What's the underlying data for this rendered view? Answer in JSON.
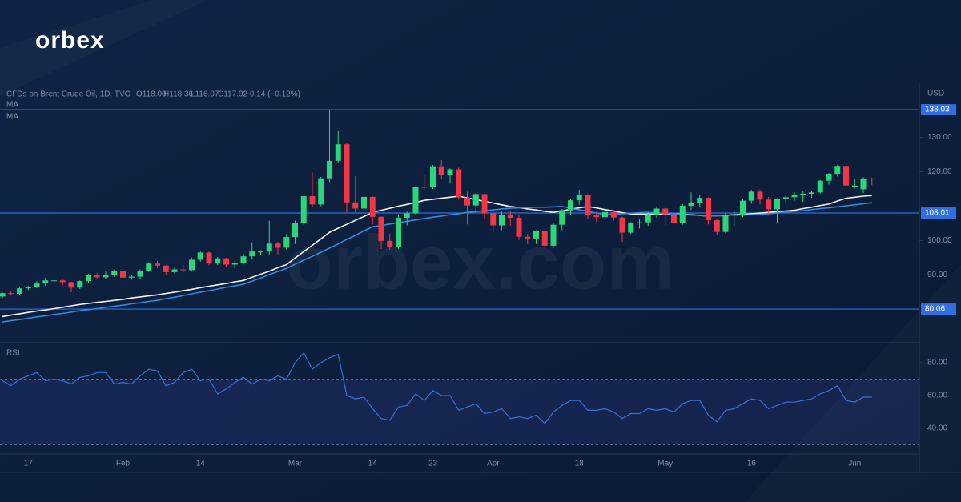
{
  "brand": {
    "logo": "orbex",
    "watermark": "orbex.com"
  },
  "chart_data": [
    {
      "type": "candlestick",
      "title": "CFDs on Brent Crude Oil, 1D, TVC",
      "ohlc_legend": [
        "O118.00",
        "H118.36",
        "L116.07",
        "C117.92",
        "−0.14 (−0.12%)"
      ],
      "y_axis_label": "USD",
      "categories": [
        null,
        null,
        null,
        "17",
        null,
        null,
        null,
        null,
        null,
        null,
        null,
        null,
        null,
        null,
        "Feb",
        null,
        null,
        null,
        null,
        null,
        null,
        null,
        null,
        "14",
        null,
        null,
        null,
        null,
        null,
        null,
        null,
        null,
        null,
        null,
        "Mar",
        null,
        null,
        null,
        null,
        null,
        null,
        null,
        null,
        "14",
        null,
        null,
        null,
        null,
        null,
        null,
        "23",
        null,
        null,
        null,
        null,
        null,
        null,
        "Apr",
        null,
        null,
        null,
        null,
        null,
        null,
        null,
        null,
        null,
        "18",
        null,
        null,
        null,
        null,
        null,
        null,
        null,
        null,
        null,
        "May",
        null,
        null,
        null,
        null,
        null,
        null,
        null,
        null,
        null,
        "16",
        null,
        null,
        null,
        null,
        null,
        null,
        null,
        null,
        null,
        null,
        null,
        "Jun",
        null,
        null
      ],
      "open": [
        83.7,
        84.7,
        84.5,
        86.1,
        86.5,
        87.5,
        88.4,
        88.4,
        87.9,
        86.3,
        88.2,
        90.0,
        89.3,
        90.0,
        91.2,
        89.2,
        89.5,
        91.1,
        93.3,
        92.7,
        90.8,
        91.6,
        91.4,
        94.4,
        96.5,
        93.3,
        94.8,
        93.0,
        93.5,
        95.4,
        96.8,
        96.8,
        99.1,
        97.9,
        101.0,
        105.0,
        112.9,
        110.5,
        118.1,
        123.2,
        128.0,
        111.1,
        109.3,
        112.7,
        106.9,
        99.9,
        98.0,
        106.6,
        107.9,
        115.6,
        115.5,
        121.6,
        119.0,
        120.7,
        112.5,
        110.2,
        113.5,
        107.9,
        104.4,
        107.5,
        106.6,
        101.1,
        100.6,
        102.8,
        98.5,
        104.6,
        108.8,
        111.7,
        113.2,
        107.3,
        106.8,
        108.3,
        106.7,
        102.3,
        105.0,
        105.3,
        107.6,
        109.3,
        107.6,
        105.0,
        110.1,
        111.0,
        112.4,
        105.9,
        102.5,
        107.5,
        107.5,
        111.6,
        114.2,
        111.9,
        109.1,
        112.0,
        112.6,
        113.4,
        113.6,
        114.0,
        117.4,
        119.4,
        121.7,
        115.7,
        114.9,
        118.0
      ],
      "high": [
        84.9,
        85.4,
        86.3,
        86.8,
        88.1,
        89.2,
        89.0,
        88.6,
        88.0,
        88.4,
        90.3,
        90.6,
        91.0,
        91.5,
        91.6,
        90.1,
        91.6,
        93.7,
        94.0,
        92.9,
        92.1,
        92.9,
        95.0,
        96.8,
        96.8,
        95.2,
        95.0,
        94.0,
        96.0,
        99.5,
        97.2,
        105.8,
        99.6,
        101.9,
        105.8,
        113.0,
        119.8,
        118.5,
        138.0,
        132.0,
        128.4,
        118.7,
        113.5,
        112.9,
        107.0,
        102.0,
        107.6,
        108.4,
        115.8,
        119.0,
        122.0,
        123.4,
        121.0,
        121.2,
        114.2,
        114.0,
        113.6,
        108.4,
        108.4,
        108.5,
        107.6,
        102.0,
        103.0,
        103.0,
        105.0,
        109.2,
        112.0,
        114.8,
        113.5,
        108.4,
        109.0,
        108.7,
        106.9,
        105.4,
        106.3,
        108.3,
        110.0,
        109.6,
        107.9,
        110.6,
        114.0,
        113.2,
        112.6,
        106.3,
        108.0,
        108.5,
        112.0,
        114.8,
        114.8,
        112.7,
        112.3,
        113.0,
        114.0,
        114.4,
        114.4,
        117.6,
        119.6,
        122.0,
        124.0,
        117.9,
        118.4,
        118.36
      ],
      "low": [
        83.4,
        84.0,
        84.2,
        85.6,
        86.2,
        86.8,
        87.5,
        87.0,
        85.0,
        85.9,
        87.8,
        88.7,
        88.9,
        89.5,
        88.7,
        88.6,
        88.8,
        90.9,
        92.0,
        90.0,
        90.5,
        90.8,
        91.0,
        93.9,
        92.8,
        92.9,
        92.2,
        91.9,
        93.2,
        94.5,
        95.8,
        95.9,
        96.0,
        97.4,
        99.0,
        104.5,
        109.8,
        110.0,
        117.0,
        122.8,
        108.2,
        108.2,
        108.0,
        104.7,
        97.5,
        97.3,
        97.6,
        104.4,
        107.5,
        114.8,
        115.0,
        118.0,
        116.5,
        111.9,
        104.7,
        108.7,
        106.2,
        102.3,
        103.0,
        104.3,
        100.2,
        98.9,
        99.0,
        97.6,
        97.9,
        103.0,
        107.5,
        110.4,
        106.4,
        105.4,
        106.1,
        105.8,
        99.6,
        101.9,
        103.5,
        104.3,
        106.6,
        104.5,
        104.2,
        104.6,
        108.9,
        109.6,
        104.7,
        101.7,
        102.1,
        104.2,
        106.8,
        110.7,
        110.5,
        107.2,
        105.2,
        110.7,
        111.6,
        111.3,
        112.4,
        113.7,
        116.3,
        118.6,
        115.5,
        115.2,
        113.8,
        116.07
      ],
      "close": [
        84.7,
        84.5,
        86.1,
        86.5,
        87.5,
        88.4,
        88.4,
        87.9,
        86.3,
        88.2,
        90.0,
        89.3,
        90.0,
        91.2,
        89.2,
        89.5,
        91.1,
        93.3,
        92.7,
        90.8,
        91.6,
        91.4,
        94.4,
        96.5,
        93.3,
        94.8,
        93.0,
        93.5,
        95.4,
        96.8,
        96.8,
        99.1,
        97.9,
        101.0,
        105.0,
        112.9,
        110.5,
        118.1,
        123.2,
        128.0,
        111.1,
        109.3,
        112.7,
        106.9,
        99.9,
        98.0,
        106.6,
        107.9,
        115.6,
        115.5,
        121.6,
        119.0,
        120.7,
        112.5,
        110.2,
        113.5,
        107.9,
        104.4,
        107.5,
        106.6,
        101.1,
        100.6,
        102.8,
        98.5,
        104.6,
        108.8,
        111.7,
        113.2,
        107.3,
        106.8,
        108.3,
        106.7,
        102.3,
        105.0,
        105.3,
        107.6,
        109.3,
        107.6,
        105.0,
        110.1,
        111.0,
        112.4,
        105.9,
        102.5,
        107.5,
        107.5,
        111.6,
        114.2,
        111.9,
        109.1,
        112.0,
        112.6,
        113.4,
        113.6,
        114.0,
        117.4,
        119.4,
        121.7,
        116.0,
        116.0,
        118.06,
        117.92
      ],
      "up_color": "#2bd67b",
      "down_color": "#f23645",
      "series": [
        {
          "name": "MA",
          "color": "#f2f2f2",
          "values": [
            77.9,
            78.3,
            78.7,
            79.1,
            79.5,
            79.8,
            80.2,
            80.6,
            81.0,
            81.4,
            81.7,
            82.0,
            82.3,
            82.6,
            82.9,
            83.3,
            83.6,
            83.9,
            84.2,
            84.6,
            85.0,
            85.4,
            85.8,
            86.3,
            86.7,
            87.1,
            87.5,
            88.0,
            88.4,
            89.3,
            90.2,
            91.1,
            92.1,
            93.0,
            94.9,
            96.8,
            98.6,
            100.5,
            102.4,
            103.6,
            104.7,
            105.9,
            107.0,
            108.2,
            108.8,
            109.4,
            110.0,
            110.5,
            111.1,
            111.7,
            112.0,
            112.3,
            112.6,
            112.9,
            112.4,
            111.9,
            111.4,
            110.9,
            110.4,
            109.9,
            109.6,
            109.2,
            108.9,
            108.5,
            108.2,
            108.6,
            109.1,
            109.5,
            109.9,
            109.5,
            109.0,
            108.6,
            108.1,
            107.7,
            107.7,
            107.7,
            107.7,
            107.7,
            107.7,
            107.7,
            107.5,
            107.3,
            107.1,
            107.2,
            107.3,
            107.5,
            107.6,
            107.8,
            108.0,
            108.2,
            108.4,
            108.6,
            108.8,
            109.3,
            109.7,
            110.2,
            110.6,
            111.5,
            112.3,
            112.6,
            112.9,
            113.1
          ]
        },
        {
          "name": "MA",
          "color": "#2f8ae0",
          "values": [
            76.3,
            76.7,
            77.0,
            77.4,
            77.8,
            78.1,
            78.5,
            78.8,
            79.2,
            79.6,
            79.9,
            80.2,
            80.6,
            80.9,
            81.2,
            81.6,
            81.9,
            82.3,
            82.6,
            83.1,
            83.5,
            84.0,
            84.5,
            85.0,
            85.4,
            85.9,
            86.4,
            86.8,
            87.3,
            88.2,
            89.1,
            90.1,
            91.0,
            91.9,
            93.1,
            94.3,
            95.4,
            96.6,
            97.8,
            99.0,
            100.3,
            101.5,
            102.8,
            104.0,
            104.4,
            104.8,
            105.2,
            105.6,
            106.0,
            106.4,
            106.8,
            107.1,
            107.5,
            107.8,
            108.2,
            108.4,
            108.7,
            108.9,
            109.2,
            109.4,
            109.5,
            109.6,
            109.7,
            109.7,
            109.8,
            109.9,
            109.4,
            108.9,
            108.5,
            108.0,
            107.5,
            107.6,
            107.8,
            107.9,
            108.1,
            108.2,
            108.0,
            107.9,
            107.7,
            107.6,
            107.4,
            107.3,
            107.1,
            107.2,
            107.3,
            107.4,
            107.4,
            107.5,
            107.6,
            107.8,
            108.0,
            108.3,
            108.5,
            108.7,
            109.0,
            109.3,
            109.5,
            109.8,
            110.1,
            110.4,
            110.7,
            111.0
          ]
        }
      ],
      "levels": [
        138.03,
        108.01,
        80.06
      ],
      "level_color": "#2f6fe0",
      "ylim": [
        70.3,
        144.8
      ],
      "yticks": [
        {
          "value": 90,
          "label": "90.00"
        },
        {
          "value": 100,
          "label": "100.00"
        },
        {
          "value": 120,
          "label": "120.00"
        },
        {
          "value": 130,
          "label": "130.00"
        }
      ],
      "grid": false
    },
    {
      "type": "line",
      "title": "RSI",
      "color": "#3a6fd8",
      "band_color": "rgba(70,80,200,0.16)",
      "values": [
        69,
        66,
        70,
        72,
        74,
        69,
        70,
        69,
        67,
        71,
        72,
        74,
        74,
        67,
        68,
        67,
        72,
        76,
        75,
        66,
        68,
        74,
        76,
        69,
        70,
        61,
        64,
        68,
        71,
        67,
        70,
        69,
        72,
        70,
        80,
        86,
        76,
        80,
        83,
        85,
        60,
        58,
        59,
        52,
        46,
        45,
        53,
        54,
        61,
        57,
        63,
        60,
        60,
        51,
        53,
        55,
        49,
        50,
        52,
        46,
        47,
        46,
        48,
        43,
        50,
        54,
        57,
        57,
        51,
        51,
        52,
        50,
        46,
        49,
        49,
        52,
        51,
        52,
        50,
        55,
        57,
        57,
        48,
        44,
        51,
        52,
        55,
        58,
        57,
        52,
        54,
        56,
        56,
        57,
        58,
        61,
        63,
        66,
        57,
        56,
        59,
        59
      ],
      "hlines": [
        70,
        50,
        30
      ],
      "ylim": [
        24.4,
        91.2
      ],
      "yticks": [
        {
          "value": 80,
          "label": "80.00"
        },
        {
          "value": 60,
          "label": "60.00"
        },
        {
          "value": 40,
          "label": "40.00"
        }
      ]
    }
  ]
}
